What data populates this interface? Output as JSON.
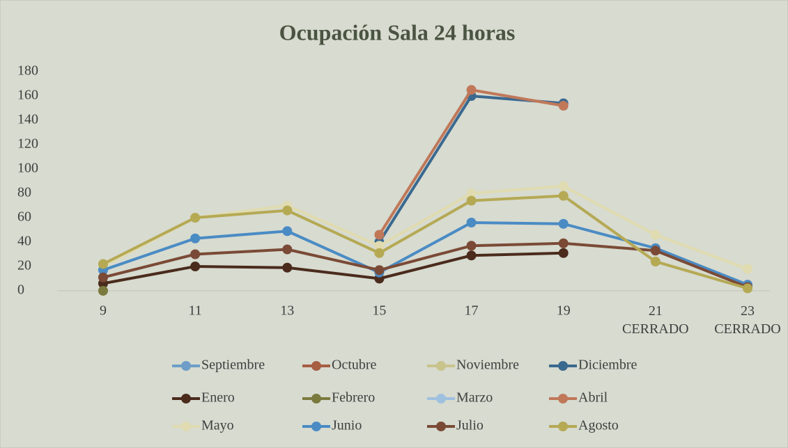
{
  "chart_data": {
    "type": "line",
    "title": "Ocupación Sala 24 horas",
    "categories": [
      "9",
      "11",
      "13",
      "15",
      "17",
      "19",
      "21\nCERRADO",
      "23\nCERRADO"
    ],
    "ylim": [
      0,
      180
    ],
    "yticks": [
      0,
      20,
      40,
      60,
      80,
      100,
      120,
      140,
      160,
      180
    ],
    "legend": "bottom",
    "series": [
      {
        "name": "Septiembre",
        "color": "#6e9ec8",
        "values": [
          null,
          null,
          null,
          null,
          null,
          null,
          null,
          null
        ]
      },
      {
        "name": "Octubre",
        "color": "#a65d42",
        "values": [
          null,
          null,
          null,
          null,
          null,
          null,
          null,
          null
        ]
      },
      {
        "name": "Noviembre",
        "color": "#c9c38c",
        "values": [
          null,
          null,
          null,
          null,
          null,
          null,
          null,
          null
        ]
      },
      {
        "name": "Diciembre",
        "color": "#3a6990",
        "values": [
          null,
          null,
          null,
          40,
          160,
          154,
          null,
          null
        ]
      },
      {
        "name": "Enero",
        "color": "#4a2b1c",
        "values": [
          6,
          20,
          19,
          10,
          29,
          31,
          null,
          null
        ]
      },
      {
        "name": "Febrero",
        "color": "#7b7a3e",
        "values": [
          0,
          null,
          null,
          null,
          null,
          null,
          null,
          null
        ]
      },
      {
        "name": "Marzo",
        "color": "#9fc0df",
        "values": [
          null,
          null,
          null,
          null,
          null,
          null,
          null,
          null
        ]
      },
      {
        "name": "Abril",
        "color": "#c07859",
        "values": [
          null,
          null,
          null,
          46,
          165,
          152,
          null,
          null
        ]
      },
      {
        "name": "Mayo",
        "color": "#e0dbb0",
        "values": [
          20,
          60,
          70,
          37,
          80,
          86,
          46,
          18
        ]
      },
      {
        "name": "Junio",
        "color": "#4a8bc4",
        "values": [
          17,
          43,
          49,
          15,
          56,
          55,
          35,
          5
        ]
      },
      {
        "name": "Julio",
        "color": "#7a4a36",
        "values": [
          11,
          30,
          34,
          17,
          37,
          39,
          33,
          3
        ]
      },
      {
        "name": "Agosto",
        "color": "#b5a954",
        "values": [
          22,
          60,
          66,
          31,
          74,
          78,
          24,
          2
        ]
      }
    ]
  }
}
